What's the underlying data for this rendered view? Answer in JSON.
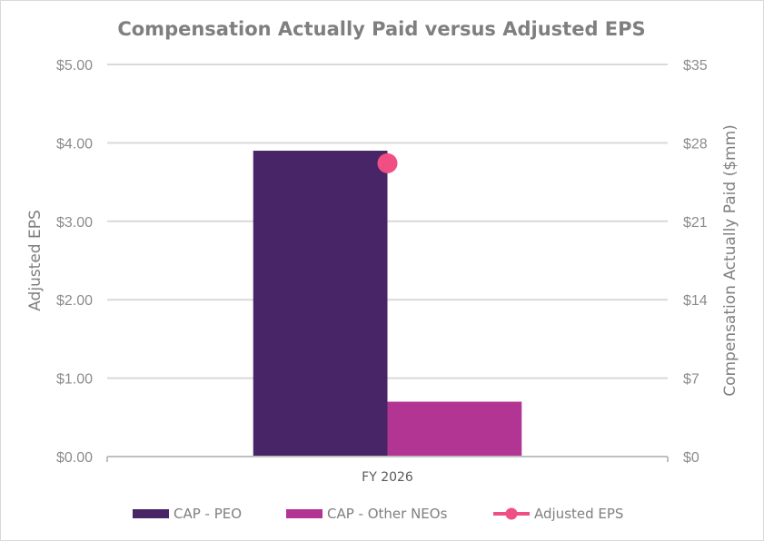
{
  "chart_data": {
    "type": "bar",
    "title": "Compensation Actually Paid versus Adjusted EPS",
    "categories": [
      "FY 2026"
    ],
    "y_left": {
      "label": "Adjusted EPS",
      "range": [
        0,
        5
      ],
      "ticks": [
        0,
        1,
        2,
        3,
        4,
        5
      ],
      "tick_labels": [
        "$0.00",
        "$1.00",
        "$2.00",
        "$3.00",
        "$4.00",
        "$5.00"
      ]
    },
    "y_right": {
      "label": "Compensation Actually Paid ($mm)",
      "range": [
        0,
        35
      ],
      "ticks": [
        0,
        7,
        14,
        21,
        28,
        35
      ],
      "tick_labels": [
        "$0",
        "$7",
        "$14",
        "$21",
        "$28",
        "$35"
      ]
    },
    "series": [
      {
        "name": "CAP - PEO",
        "kind": "bar",
        "axis": "left",
        "values": [
          3.9
        ],
        "color": "#472567"
      },
      {
        "name": "CAP - Other NEOs",
        "kind": "bar",
        "axis": "left",
        "values": [
          0.7
        ],
        "color": "#b23593"
      },
      {
        "name": "Adjusted EPS",
        "kind": "line-marker",
        "axis": "left",
        "values": [
          3.74
        ],
        "color": "#ef4f83"
      }
    ],
    "grid": true,
    "legend_position": "bottom"
  }
}
